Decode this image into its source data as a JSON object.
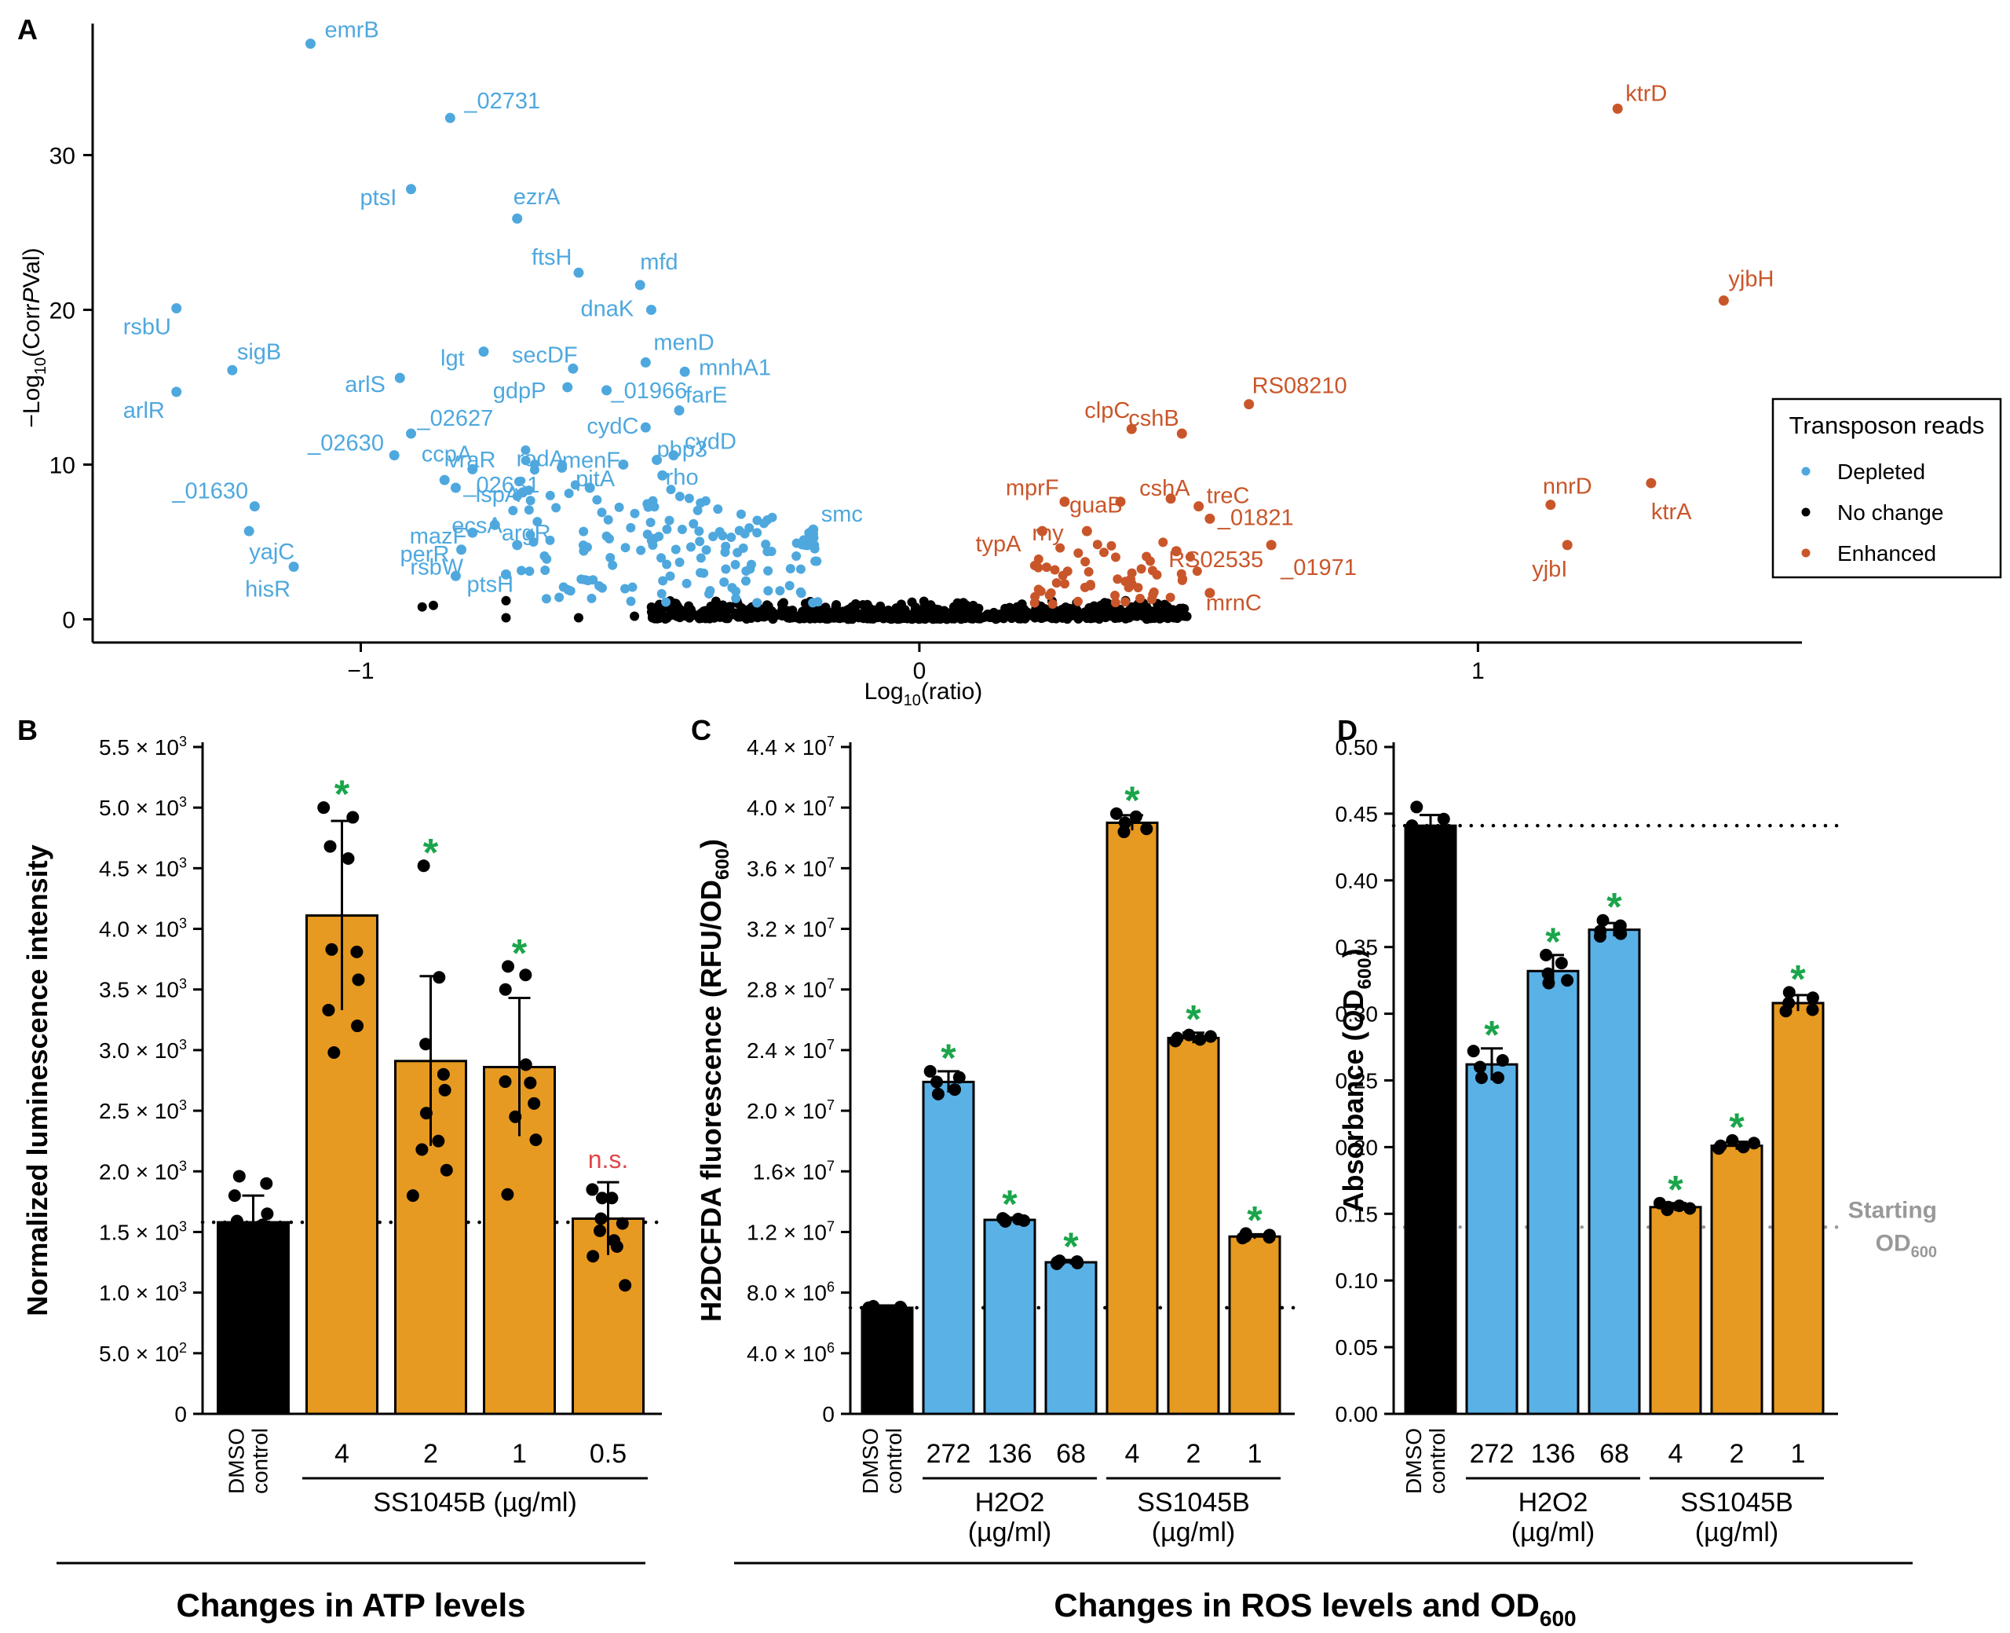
{
  "colors": {
    "depleted": "#4ea8de",
    "enhanced": "#c9562a",
    "nochange": "#000000",
    "orange": "#e79a21",
    "blue": "#5ab1e6",
    "black": "#000000",
    "sig": "#1aa54a",
    "ns": "#e0464a",
    "gray": "#999999"
  },
  "chart_data": [
    {
      "panel": "A",
      "type": "scatter",
      "xlabel_pre": "Log",
      "xlabel_sub": "10",
      "xlabel_post": "(ratio)",
      "ylabel_pre": "−Log",
      "ylabel_sub": "10",
      "ylabel_post": "(Corr",
      "ylabel_ital": "P",
      "ylabel_tail": "Val)",
      "xlim": [
        -1.48,
        1.58
      ],
      "ylim": [
        -1.5,
        38.5
      ],
      "xticks": [
        {
          "v": -1,
          "label": "−1"
        },
        {
          "v": 0,
          "label": "0"
        },
        {
          "v": 1,
          "label": "1"
        }
      ],
      "yticks": [
        {
          "v": 0,
          "label": "0"
        },
        {
          "v": 10,
          "label": "10"
        },
        {
          "v": 20,
          "label": "20"
        },
        {
          "v": 30,
          "label": "30"
        }
      ],
      "legend": {
        "title": "Transposon reads",
        "items": [
          {
            "label": "Depleted",
            "key": "depleted"
          },
          {
            "label": "No change",
            "key": "nochange"
          },
          {
            "label": "Enhanced",
            "key": "enhanced"
          }
        ],
        "position": "right"
      },
      "labeled_points": [
        {
          "g": "depleted",
          "x": -1.09,
          "y": 37.2,
          "label": "emrB"
        },
        {
          "g": "depleted",
          "x": -0.84,
          "y": 32.4,
          "label": "_02731"
        },
        {
          "g": "depleted",
          "x": -0.91,
          "y": 27.8,
          "label": "ptsI"
        },
        {
          "g": "depleted",
          "x": -0.72,
          "y": 25.9,
          "label": "ezrA"
        },
        {
          "g": "depleted",
          "x": -0.61,
          "y": 22.4,
          "label": "ftsH"
        },
        {
          "g": "depleted",
          "x": -0.5,
          "y": 21.6,
          "label": "mfd"
        },
        {
          "g": "depleted",
          "x": -0.48,
          "y": 20.0,
          "label": "dnaK"
        },
        {
          "g": "depleted",
          "x": -1.33,
          "y": 20.1,
          "label": "rsbU"
        },
        {
          "g": "depleted",
          "x": -0.78,
          "y": 17.3,
          "label": "lgt"
        },
        {
          "g": "depleted",
          "x": -0.62,
          "y": 16.2,
          "label": "secDF"
        },
        {
          "g": "depleted",
          "x": -0.49,
          "y": 16.6,
          "label": "menD"
        },
        {
          "g": "depleted",
          "x": -1.23,
          "y": 16.1,
          "label": "sigB"
        },
        {
          "g": "depleted",
          "x": -0.42,
          "y": 16.0,
          "label": "mnhA1"
        },
        {
          "g": "depleted",
          "x": -0.63,
          "y": 15.0,
          "label": "gdpP"
        },
        {
          "g": "depleted",
          "x": -0.93,
          "y": 15.6,
          "label": "arlS"
        },
        {
          "g": "depleted",
          "x": -0.56,
          "y": 14.8,
          "label": "_01966"
        },
        {
          "g": "depleted",
          "x": -1.33,
          "y": 14.7,
          "label": "arlR"
        },
        {
          "g": "depleted",
          "x": -0.43,
          "y": 13.5,
          "label": "farE"
        },
        {
          "g": "depleted",
          "x": -0.91,
          "y": 12.0,
          "label": "_02627"
        },
        {
          "g": "depleted",
          "x": -0.49,
          "y": 12.4,
          "label": "cydC"
        },
        {
          "g": "depleted",
          "x": -0.44,
          "y": 10.6,
          "label": "cydD"
        },
        {
          "g": "depleted",
          "x": -0.94,
          "y": 10.6,
          "label": "_02630"
        },
        {
          "g": "depleted",
          "x": -0.53,
          "y": 10.0,
          "label": "menF"
        },
        {
          "g": "depleted",
          "x": -0.8,
          "y": 9.7,
          "label": "ccpA"
        },
        {
          "g": "depleted",
          "x": -0.85,
          "y": 9.0,
          "label": "vraR"
        },
        {
          "g": "depleted",
          "x": -0.47,
          "y": 10.3,
          "label": "pbp3"
        },
        {
          "g": "depleted",
          "x": -0.64,
          "y": 9.8,
          "label": "rodA"
        },
        {
          "g": "depleted",
          "x": -0.83,
          "y": 8.5,
          "label": "_02631"
        },
        {
          "g": "depleted",
          "x": -0.71,
          "y": 8.2,
          "label": "lspA"
        },
        {
          "g": "depleted",
          "x": -0.59,
          "y": 8.5,
          "label": "pitA"
        },
        {
          "g": "depleted",
          "x": -0.46,
          "y": 9.3,
          "label": "rho"
        },
        {
          "g": "depleted",
          "x": -1.19,
          "y": 7.3,
          "label": "_01630"
        },
        {
          "g": "depleted",
          "x": -0.76,
          "y": 6.1,
          "label": "ecsA"
        },
        {
          "g": "depleted",
          "x": -0.8,
          "y": 5.6,
          "label": "mazF"
        },
        {
          "g": "depleted",
          "x": -0.19,
          "y": 5.8,
          "label": "smc"
        },
        {
          "g": "depleted",
          "x": -1.2,
          "y": 5.7,
          "label": "yajC"
        },
        {
          "g": "depleted",
          "x": -0.72,
          "y": 4.8,
          "label": "argR"
        },
        {
          "g": "depleted",
          "x": -0.82,
          "y": 4.5,
          "label": "perR"
        },
        {
          "g": "depleted",
          "x": -1.12,
          "y": 3.4,
          "label": "hisR"
        },
        {
          "g": "depleted",
          "x": -0.83,
          "y": 2.8,
          "label": "rsbW"
        },
        {
          "g": "depleted",
          "x": -0.74,
          "y": 2.9,
          "label": "ptsH"
        },
        {
          "g": "enhanced",
          "x": 1.25,
          "y": 33.0,
          "label": "ktrD"
        },
        {
          "g": "enhanced",
          "x": 1.44,
          "y": 20.6,
          "label": "yjbH"
        },
        {
          "g": "enhanced",
          "x": 0.59,
          "y": 13.9,
          "label": "RS08210"
        },
        {
          "g": "enhanced",
          "x": 0.38,
          "y": 12.3,
          "label": "clpC"
        },
        {
          "g": "enhanced",
          "x": 0.47,
          "y": 12.0,
          "label": "cshB"
        },
        {
          "g": "enhanced",
          "x": 1.13,
          "y": 7.4,
          "label": "nnrD"
        },
        {
          "g": "enhanced",
          "x": 1.31,
          "y": 8.8,
          "label": "ktrA"
        },
        {
          "g": "enhanced",
          "x": 0.26,
          "y": 7.6,
          "label": "mprF"
        },
        {
          "g": "enhanced",
          "x": 0.36,
          "y": 7.6,
          "label": "guaB"
        },
        {
          "g": "enhanced",
          "x": 0.45,
          "y": 7.8,
          "label": "cshA"
        },
        {
          "g": "enhanced",
          "x": 0.5,
          "y": 7.3,
          "label": "treC"
        },
        {
          "g": "enhanced",
          "x": 0.52,
          "y": 6.5,
          "label": "_01821"
        },
        {
          "g": "enhanced",
          "x": 0.3,
          "y": 5.7,
          "label": "rny"
        },
        {
          "g": "enhanced",
          "x": 0.22,
          "y": 5.7,
          "label": "typA"
        },
        {
          "g": "enhanced",
          "x": 0.46,
          "y": 4.4,
          "label": "RS02535"
        },
        {
          "g": "enhanced",
          "x": 0.63,
          "y": 4.8,
          "label": "_01971"
        },
        {
          "g": "enhanced",
          "x": 1.16,
          "y": 4.8,
          "label": "yjbI"
        },
        {
          "g": "enhanced",
          "x": 0.52,
          "y": 1.7,
          "label": "mrnC"
        }
      ]
    },
    {
      "panel": "B",
      "type": "bar",
      "ylabel": "Normalized luminescence intensity",
      "ylim": [
        0,
        5500
      ],
      "yticks": [
        {
          "v": 0,
          "m": "0",
          "e": ""
        },
        {
          "v": 500,
          "m": "5.0 × 10",
          "e": "2"
        },
        {
          "v": 1000,
          "m": "1.0 × 10",
          "e": "3"
        },
        {
          "v": 1500,
          "m": "1.5 × 10",
          "e": "3"
        },
        {
          "v": 2000,
          "m": "2.0 × 10",
          "e": "3"
        },
        {
          "v": 2500,
          "m": "2.5 × 10",
          "e": "3"
        },
        {
          "v": 3000,
          "m": "3.0 × 10",
          "e": "3"
        },
        {
          "v": 3500,
          "m": "3.5 × 10",
          "e": "3"
        },
        {
          "v": 4000,
          "m": "4.0 × 10",
          "e": "3"
        },
        {
          "v": 4500,
          "m": "4.5 × 10",
          "e": "3"
        },
        {
          "v": 5000,
          "m": "5.0 × 10",
          "e": "3"
        },
        {
          "v": 5500,
          "m": "5.5 × 10",
          "e": "3"
        }
      ],
      "baseline": 1580,
      "bars": [
        {
          "label": "DMSO\ncontrol",
          "value": 1580,
          "err": 220,
          "color": "black",
          "mark": "",
          "points": [
            1960,
            1900,
            1800,
            1650,
            1590,
            1560,
            1540,
            1520,
            1500,
            1520
          ]
        },
        {
          "label": "4",
          "value": 4110,
          "err": 780,
          "color": "orange",
          "mark": "*",
          "points": [
            5000,
            4920,
            4680,
            4580,
            3830,
            3580,
            3330,
            3200,
            2980,
            3810
          ]
        },
        {
          "label": "2",
          "value": 2910,
          "err": 700,
          "color": "orange",
          "mark": "*",
          "points": [
            4520,
            3600,
            3050,
            2670,
            2480,
            2250,
            2180,
            2010,
            1800,
            2800
          ]
        },
        {
          "label": "1",
          "value": 2860,
          "err": 570,
          "color": "orange",
          "mark": "*",
          "points": [
            3690,
            3620,
            3500,
            2880,
            2740,
            2560,
            2450,
            2260,
            1810,
            2730
          ]
        },
        {
          "label": "0.5",
          "value": 1610,
          "err": 300,
          "color": "orange",
          "mark": "n.s.",
          "points": [
            1850,
            1780,
            1610,
            1570,
            1510,
            1430,
            1300,
            1060,
            1780,
            1380
          ]
        }
      ],
      "group_label": "SS1045B (µg/ml)",
      "footer": "Changes in ATP levels"
    },
    {
      "panel": "C",
      "type": "bar",
      "ylabel_pre": "H2DCFDA fluorescence (RFU/OD",
      "ylabel_sub": "600",
      "ylabel_post": ")",
      "ylim": [
        0,
        44000000
      ],
      "yticks": [
        {
          "v": 0,
          "m": "0",
          "e": ""
        },
        {
          "v": 4000000,
          "m": "4.0 × 10",
          "e": "6"
        },
        {
          "v": 8000000,
          "m": "8.0 × 10",
          "e": "6"
        },
        {
          "v": 12000000,
          "m": "1.2 × 10",
          "e": "7"
        },
        {
          "v": 16000000,
          "m": "1.6× 10",
          "e": "7"
        },
        {
          "v": 20000000,
          "m": "2.0 × 10",
          "e": "7"
        },
        {
          "v": 24000000,
          "m": "2.4 × 10",
          "e": "7"
        },
        {
          "v": 28000000,
          "m": "2.8 × 10",
          "e": "7"
        },
        {
          "v": 32000000,
          "m": "3.2 × 10",
          "e": "7"
        },
        {
          "v": 36000000,
          "m": "3.6 × 10",
          "e": "7"
        },
        {
          "v": 40000000,
          "m": "4.0 × 10",
          "e": "7"
        },
        {
          "v": 44000000,
          "m": "4.4 × 10",
          "e": "7"
        }
      ],
      "baseline": 7000000,
      "bars": [
        {
          "label": "DMSO\ncontrol",
          "value": 7000000,
          "err": 150000,
          "color": "black",
          "mark": "",
          "points": [
            7100000,
            7050000,
            7000000,
            6950000,
            7000000
          ]
        },
        {
          "label": "272",
          "value": 21900000,
          "err": 700000,
          "color": "blue",
          "mark": "*",
          "points": [
            22600000,
            22200000,
            21900000,
            21400000,
            21100000
          ]
        },
        {
          "label": "136",
          "value": 12800000,
          "err": 150000,
          "color": "blue",
          "mark": "*",
          "points": [
            12900000,
            12850000,
            12800000,
            12750000,
            12700000
          ]
        },
        {
          "label": "68",
          "value": 10000000,
          "err": 150000,
          "color": "blue",
          "mark": "*",
          "points": [
            10100000,
            10050000,
            10000000,
            9950000,
            9900000
          ]
        },
        {
          "label": "4",
          "value": 39000000,
          "err": 500000,
          "color": "orange",
          "mark": "*",
          "points": [
            39600000,
            39400000,
            39000000,
            38600000,
            38400000
          ]
        },
        {
          "label": "2",
          "value": 24800000,
          "err": 350000,
          "color": "orange",
          "mark": "*",
          "points": [
            25000000,
            24900000,
            24800000,
            24700000,
            24600000
          ]
        },
        {
          "label": "1",
          "value": 11700000,
          "err": 150000,
          "color": "orange",
          "mark": "*",
          "points": [
            11900000,
            11800000,
            11700000,
            11650000,
            11600000
          ]
        }
      ],
      "groups": [
        {
          "label": "H2O2\n(µg/ml)",
          "from": 1,
          "to": 3
        },
        {
          "label": "SS1045B\n(µg/ml)",
          "from": 4,
          "to": 6
        }
      ]
    },
    {
      "panel": "D",
      "type": "bar",
      "ylabel_pre": "Absorbance (OD",
      "ylabel_sub": "600",
      "ylabel_post": ")",
      "ylim": [
        0,
        0.5
      ],
      "yticks": [
        {
          "v": 0,
          "m": "0.00",
          "e": ""
        },
        {
          "v": 0.05,
          "m": "0.05",
          "e": ""
        },
        {
          "v": 0.1,
          "m": "0.10",
          "e": ""
        },
        {
          "v": 0.15,
          "m": "0.15",
          "e": ""
        },
        {
          "v": 0.2,
          "m": "0.20",
          "e": ""
        },
        {
          "v": 0.25,
          "m": "0.25",
          "e": ""
        },
        {
          "v": 0.3,
          "m": "0.30",
          "e": ""
        },
        {
          "v": 0.35,
          "m": "0.35",
          "e": ""
        },
        {
          "v": 0.4,
          "m": "0.40",
          "e": ""
        },
        {
          "v": 0.45,
          "m": "0.45",
          "e": ""
        },
        {
          "v": 0.5,
          "m": "0.50",
          "e": ""
        }
      ],
      "baseline": 0.441,
      "start_line": 0.14,
      "start_label_1": "Starting",
      "start_label_2_pre": "OD",
      "start_label_2_sub": "600",
      "bars": [
        {
          "label": "DMSO\ncontrol",
          "value": 0.441,
          "err": 0.008,
          "color": "black",
          "mark": "",
          "points": [
            0.455,
            0.446,
            0.441,
            0.438,
            0.436
          ]
        },
        {
          "label": "272",
          "value": 0.262,
          "err": 0.012,
          "color": "blue",
          "mark": "*",
          "points": [
            0.272,
            0.265,
            0.26,
            0.252,
            0.252
          ]
        },
        {
          "label": "136",
          "value": 0.332,
          "err": 0.012,
          "color": "blue",
          "mark": "*",
          "points": [
            0.344,
            0.338,
            0.33,
            0.325,
            0.323
          ]
        },
        {
          "label": "68",
          "value": 0.363,
          "err": 0.005,
          "color": "blue",
          "mark": "*",
          "points": [
            0.37,
            0.366,
            0.362,
            0.36,
            0.358
          ]
        },
        {
          "label": "4",
          "value": 0.155,
          "err": 0.003,
          "color": "orange",
          "mark": "*",
          "points": [
            0.158,
            0.156,
            0.155,
            0.154,
            0.153
          ]
        },
        {
          "label": "2",
          "value": 0.201,
          "err": 0.003,
          "color": "orange",
          "mark": "*",
          "points": [
            0.205,
            0.203,
            0.201,
            0.2,
            0.199
          ]
        },
        {
          "label": "1",
          "value": 0.308,
          "err": 0.006,
          "color": "orange",
          "mark": "*",
          "points": [
            0.316,
            0.312,
            0.308,
            0.303,
            0.302
          ]
        }
      ],
      "groups": [
        {
          "label": "H2O2\n(µg/ml)",
          "from": 1,
          "to": 3
        },
        {
          "label": "SS1045B\n(µg/ml)",
          "from": 4,
          "to": 6
        }
      ]
    }
  ],
  "footer_right_pre": "Changes in ROS levels and OD",
  "footer_right_sub": "600",
  "footer_left": "Changes in ATP levels"
}
